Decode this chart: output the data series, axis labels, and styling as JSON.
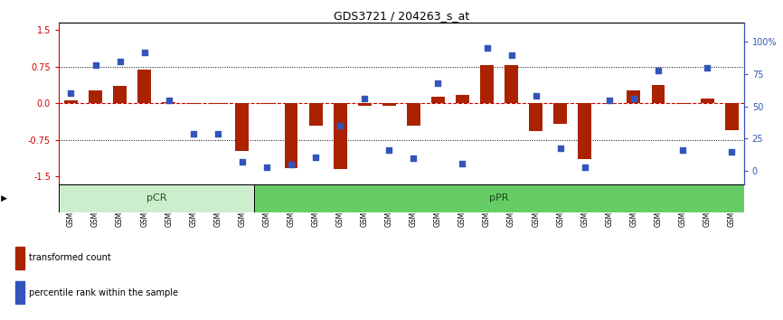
{
  "title": "GDS3721 / 204263_s_at",
  "samples": [
    "GSM559062",
    "GSM559063",
    "GSM559064",
    "GSM559065",
    "GSM559066",
    "GSM559067",
    "GSM559068",
    "GSM559069",
    "GSM559042",
    "GSM559043",
    "GSM559044",
    "GSM559045",
    "GSM559046",
    "GSM559047",
    "GSM559048",
    "GSM559049",
    "GSM559050",
    "GSM559051",
    "GSM559052",
    "GSM559053",
    "GSM559054",
    "GSM559055",
    "GSM559056",
    "GSM559057",
    "GSM559058",
    "GSM559059",
    "GSM559060",
    "GSM559061"
  ],
  "transformed_count": [
    0.05,
    0.27,
    0.35,
    0.68,
    0.03,
    -0.02,
    -0.02,
    -0.97,
    -0.02,
    -1.32,
    -0.45,
    -1.35,
    -0.06,
    -0.05,
    -0.46,
    0.14,
    0.16,
    0.78,
    0.78,
    -0.57,
    -0.42,
    -1.15,
    -0.02,
    0.26,
    0.37,
    -0.02,
    0.1,
    -0.55
  ],
  "percentile_rank": [
    60,
    82,
    85,
    92,
    55,
    29,
    29,
    7,
    3,
    5,
    11,
    35,
    56,
    16,
    10,
    68,
    6,
    95,
    90,
    58,
    18,
    3,
    55,
    56,
    78,
    16,
    80,
    15
  ],
  "pcr_count": 8,
  "bar_color": "#aa2200",
  "dot_color": "#3355bb",
  "hline_color": "#cc0000",
  "dot_hline_color": "#cc0000",
  "yticks_left": [
    -1.5,
    -0.75,
    0.0,
    0.75,
    1.5
  ],
  "yticks_right": [
    0,
    25,
    50,
    75,
    100
  ],
  "ylim_left": [
    -1.65,
    1.65
  ],
  "pcr_color": "#cceecc",
  "ppr_color": "#66cc66"
}
